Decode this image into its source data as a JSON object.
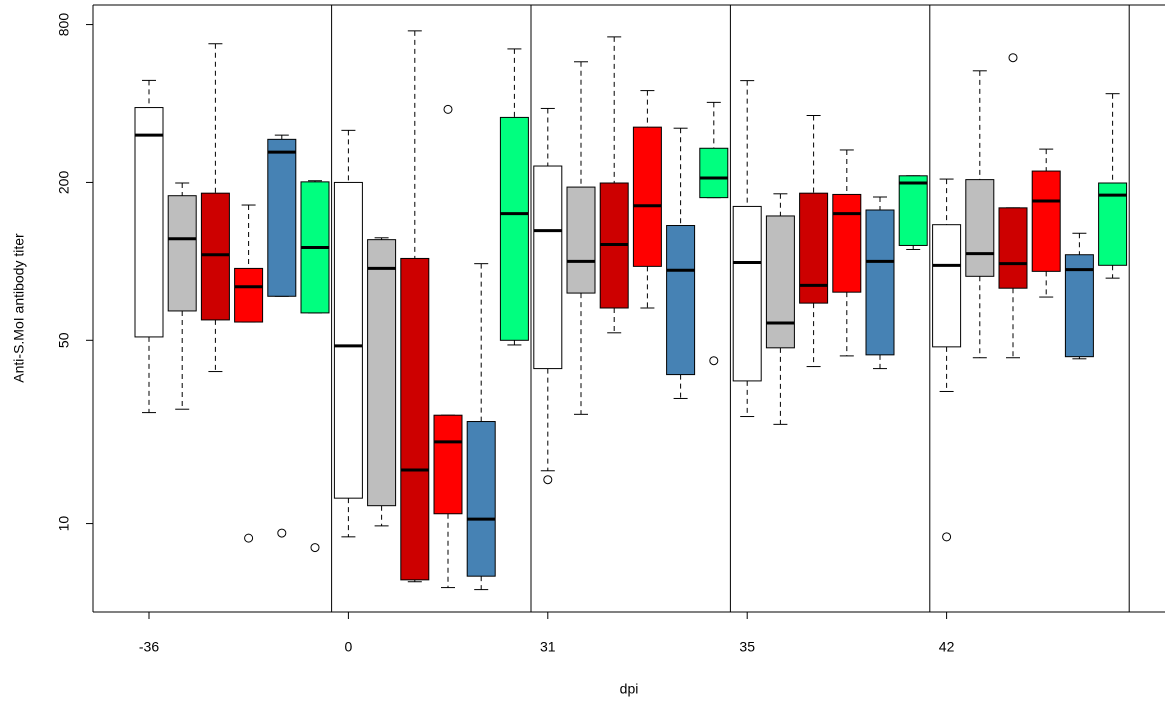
{
  "chart_data": {
    "type": "boxplot",
    "xlabel": "dpi",
    "ylabel": "Anti-S.MoI antibody titer",
    "categories": [
      "-36",
      "0",
      "31",
      "35",
      "42"
    ],
    "ylog": true,
    "ylim": [
      4.6,
      950
    ],
    "yticks": [
      10,
      50,
      200,
      800
    ],
    "series": [
      {
        "color": "#ffffff",
        "stats": [
          {
            "low": 26.5,
            "q1": 51.5,
            "median": 303,
            "q3": 386,
            "high": 490,
            "outliers": []
          },
          {
            "low": 8.9,
            "q1": 12.5,
            "median": 47.6,
            "q3": 200,
            "high": 316,
            "outliers": []
          },
          {
            "low": 15.9,
            "q1": 39,
            "median": 131,
            "q3": 231,
            "high": 383,
            "outliers": [
              14.7
            ]
          },
          {
            "low": 25.6,
            "q1": 35,
            "median": 99,
            "q3": 162,
            "high": 489,
            "outliers": []
          },
          {
            "low": 31.9,
            "q1": 47.2,
            "median": 96.5,
            "q3": 138,
            "high": 206,
            "outliers": [
              8.9
            ]
          }
        ]
      },
      {
        "color": "#bebebe",
        "stats": [
          {
            "low": 27.3,
            "q1": 64.7,
            "median": 122,
            "q3": 178,
            "high": 199,
            "outliers": []
          },
          {
            "low": 9.8,
            "q1": 11.7,
            "median": 94,
            "q3": 121,
            "high": 123,
            "outliers": []
          },
          {
            "low": 26.1,
            "q1": 75.7,
            "median": 100,
            "q3": 192,
            "high": 577,
            "outliers": []
          },
          {
            "low": 23.9,
            "q1": 46.8,
            "median": 58.2,
            "q3": 149,
            "high": 181,
            "outliers": []
          },
          {
            "low": 42.9,
            "q1": 87.7,
            "median": 107,
            "q3": 205,
            "high": 533,
            "outliers": []
          }
        ]
      },
      {
        "color": "#cd0000",
        "stats": [
          {
            "low": 38,
            "q1": 59.8,
            "median": 106,
            "q3": 182,
            "high": 676,
            "outliers": []
          },
          {
            "low": 6.0,
            "q1": 6.1,
            "median": 16,
            "q3": 102.6,
            "high": 757,
            "outliers": []
          },
          {
            "low": 53.4,
            "q1": 66.4,
            "median": 116,
            "q3": 199,
            "high": 718,
            "outliers": []
          },
          {
            "low": 39.7,
            "q1": 69.3,
            "median": 81,
            "q3": 182,
            "high": 360,
            "outliers": []
          },
          {
            "low": 42.9,
            "q1": 79,
            "median": 98,
            "q3": 160,
            "high": 160,
            "outliers": [
              598
            ]
          }
        ]
      },
      {
        "color": "#ff0000",
        "stats": [
          {
            "low": 58.7,
            "q1": 58.7,
            "median": 80,
            "q3": 94,
            "high": 164,
            "outliers": [
              8.8
            ]
          },
          {
            "low": 5.7,
            "q1": 10.9,
            "median": 20.5,
            "q3": 25.9,
            "high": 25.9,
            "outliers": [
              380
            ]
          },
          {
            "low": 66.4,
            "q1": 95.7,
            "median": 163,
            "q3": 325,
            "high": 448,
            "outliers": []
          },
          {
            "low": 43.6,
            "q1": 76.3,
            "median": 152,
            "q3": 180,
            "high": 266,
            "outliers": []
          },
          {
            "low": 73.1,
            "q1": 91.6,
            "median": 170,
            "q3": 221,
            "high": 268,
            "outliers": []
          }
        ]
      },
      {
        "color": "#4682b4",
        "stats": [
          {
            "low": 73.6,
            "q1": 73.6,
            "median": 261,
            "q3": 292,
            "high": 303,
            "outliers": [
              9.2
            ]
          },
          {
            "low": 5.6,
            "q1": 6.3,
            "median": 10.4,
            "q3": 24.5,
            "high": 98,
            "outliers": []
          },
          {
            "low": 30,
            "q1": 37,
            "median": 92.5,
            "q3": 137,
            "high": 322,
            "outliers": []
          },
          {
            "low": 39,
            "q1": 44,
            "median": 100,
            "q3": 157,
            "high": 176,
            "outliers": []
          },
          {
            "low": 42.5,
            "q1": 43.3,
            "median": 93,
            "q3": 106,
            "high": 128,
            "outliers": []
          }
        ]
      },
      {
        "color": "#00ff7f",
        "stats": [
          {
            "low": 63.6,
            "q1": 63.6,
            "median": 113,
            "q3": 201,
            "high": 203,
            "outliers": [
              8.1
            ]
          },
          {
            "low": 48,
            "q1": 50,
            "median": 152,
            "q3": 354,
            "high": 646,
            "outliers": []
          },
          {
            "low": 175,
            "q1": 175,
            "median": 208,
            "q3": 270,
            "high": 404,
            "outliers": [
              41.8
            ]
          },
          {
            "low": 111,
            "q1": 115,
            "median": 199,
            "q3": 212,
            "high": 212,
            "outliers": []
          },
          {
            "low": 86.3,
            "q1": 96.6,
            "median": 179,
            "q3": 199,
            "high": 436,
            "outliers": []
          }
        ]
      }
    ]
  }
}
